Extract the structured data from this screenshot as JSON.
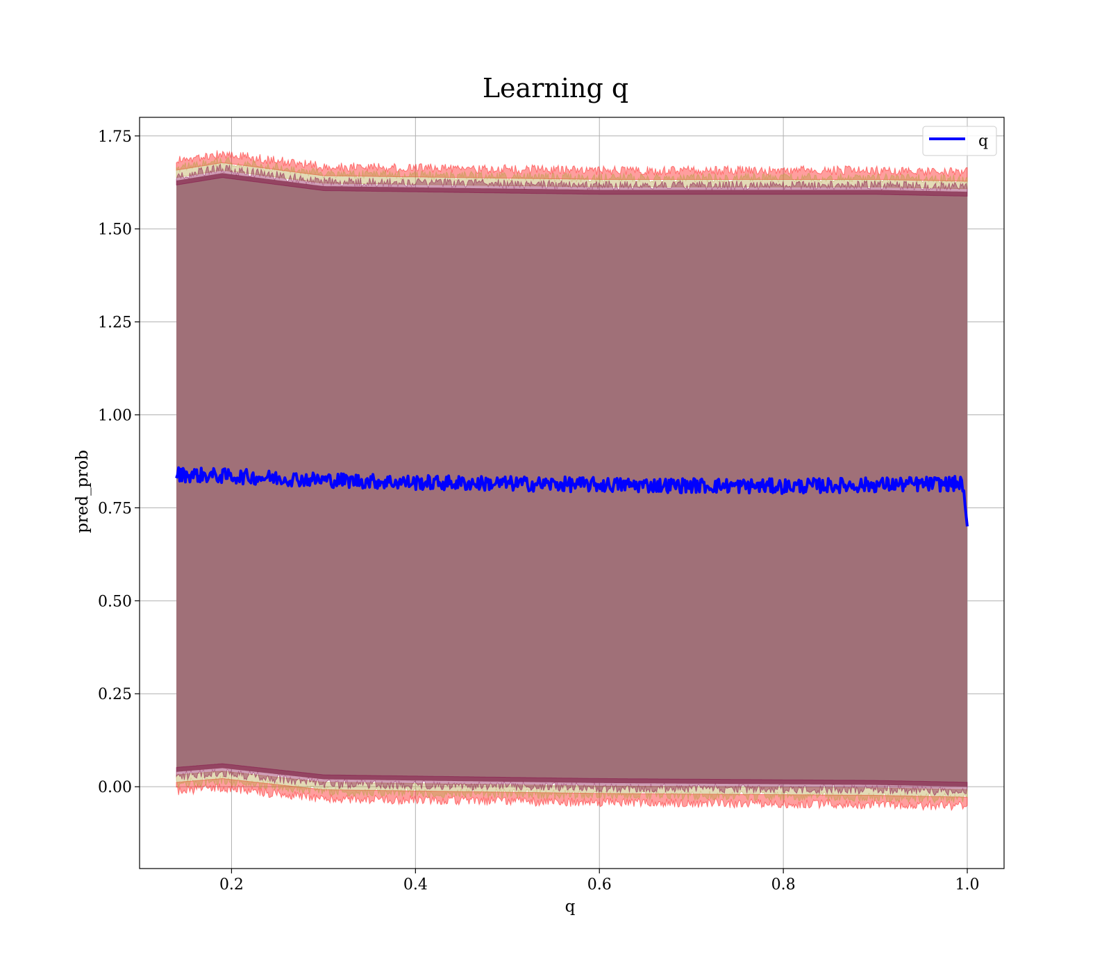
{
  "chart_data": {
    "type": "area",
    "title": "Learning q",
    "xlabel": "q",
    "ylabel": "pred_prob",
    "xlim": [
      0.1,
      1.04
    ],
    "ylim": [
      -0.22,
      1.8
    ],
    "x_ticks": [
      0.2,
      0.4,
      0.6,
      0.8,
      1.0
    ],
    "x_tick_labels": [
      "0.2",
      "0.4",
      "0.6",
      "0.8",
      "1.0"
    ],
    "y_ticks": [
      0.0,
      0.25,
      0.5,
      0.75,
      1.0,
      1.25,
      1.5,
      1.75
    ],
    "y_tick_labels": [
      "0.00",
      "0.25",
      "0.50",
      "0.75",
      "1.00",
      "1.25",
      "1.50",
      "1.75"
    ],
    "grid": true,
    "legend": {
      "placement": "top-right",
      "entries": [
        {
          "label": "q",
          "color": "#0000ff"
        }
      ]
    },
    "x_range": [
      0.14,
      1.0
    ],
    "series": [
      {
        "name": "q",
        "style": "line",
        "color": "#0000ff",
        "x": [
          0.14,
          0.2,
          0.3,
          0.4,
          0.5,
          0.6,
          0.7,
          0.8,
          0.9,
          0.995,
          1.0
        ],
        "values": [
          0.84,
          0.835,
          0.825,
          0.818,
          0.815,
          0.812,
          0.81,
          0.808,
          0.812,
          0.815,
          0.7
        ]
      }
    ],
    "bands": [
      {
        "role": "outer",
        "color": "#ff0000",
        "upper": {
          "x": [
            0.14,
            0.19,
            0.3,
            0.6,
            0.9,
            1.0
          ],
          "values": [
            1.67,
            1.69,
            1.655,
            1.645,
            1.645,
            1.64
          ]
        },
        "lower": {
          "x": [
            0.14,
            0.19,
            0.3,
            0.6,
            0.9,
            1.0
          ],
          "values": [
            0.0,
            0.01,
            -0.02,
            -0.03,
            -0.035,
            -0.04
          ]
        }
      },
      {
        "role": "middle",
        "color": "#b5a040",
        "upper": {
          "x": [
            0.14,
            0.19,
            0.3,
            0.6,
            0.9,
            1.0
          ],
          "values": [
            1.65,
            1.67,
            1.635,
            1.625,
            1.625,
            1.62
          ]
        },
        "lower": {
          "x": [
            0.14,
            0.19,
            0.3,
            0.6,
            0.9,
            1.0
          ],
          "values": [
            0.02,
            0.03,
            0.0,
            -0.01,
            -0.015,
            -0.02
          ]
        }
      },
      {
        "role": "inner",
        "color": "#800040",
        "upper": {
          "x": [
            0.14,
            0.19,
            0.3,
            0.6,
            0.9,
            1.0
          ],
          "values": [
            1.63,
            1.65,
            1.615,
            1.605,
            1.605,
            1.6
          ]
        },
        "lower": {
          "x": [
            0.14,
            0.19,
            0.3,
            0.6,
            0.9,
            1.0
          ],
          "values": [
            0.04,
            0.05,
            0.02,
            0.01,
            0.005,
            0.0
          ]
        }
      }
    ],
    "fill_color": "#a07078",
    "noise": {
      "line_amplitude": 0.02,
      "band_amplitude": 0.025,
      "samples": 700
    }
  }
}
